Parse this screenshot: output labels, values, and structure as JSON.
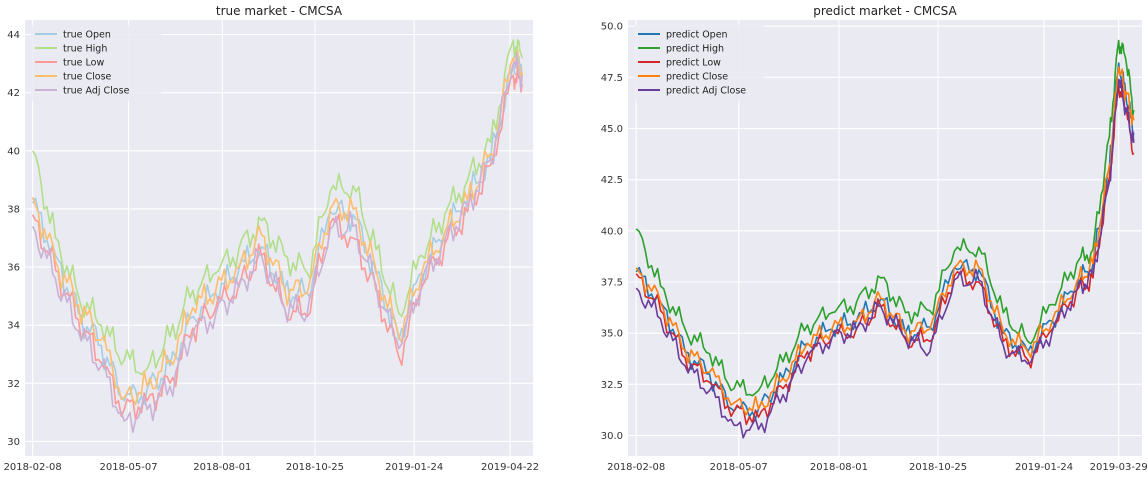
{
  "chart_data": [
    {
      "type": "line",
      "title": "true market - CMCSA",
      "xlabel": "",
      "ylabel": "",
      "x_ticks": [
        "2018-02-08",
        "2018-05-07",
        "2018-08-01",
        "2018-10-25",
        "2019-01-24",
        "2019-04-22"
      ],
      "y_ticks": [
        "30",
        "32",
        "34",
        "36",
        "38",
        "40",
        "42",
        "44"
      ],
      "xlim": [
        "2018-02-01",
        "2019-05-13"
      ],
      "ylim": [
        29.5,
        44.5
      ],
      "grid": true,
      "legend_position": "top-left",
      "x": [
        "2018-02-08",
        "2018-03-01",
        "2018-03-22",
        "2018-04-12",
        "2018-05-03",
        "2018-05-24",
        "2018-06-14",
        "2018-07-05",
        "2018-07-26",
        "2018-08-16",
        "2018-09-06",
        "2018-09-27",
        "2018-10-18",
        "2018-11-08",
        "2018-11-29",
        "2018-12-20",
        "2019-01-10",
        "2019-01-31",
        "2019-02-21",
        "2019-03-14",
        "2019-04-04",
        "2019-04-25",
        "2019-05-03"
      ],
      "series": [
        {
          "name": "true Open",
          "color": "#a6cee3",
          "values": [
            38.2,
            36.4,
            34.4,
            33.3,
            31.4,
            31.8,
            32.6,
            34.3,
            35.1,
            35.9,
            36.7,
            35.2,
            35.1,
            37.9,
            37.8,
            35.8,
            33.5,
            35.8,
            37.2,
            38.4,
            39.7,
            43.0,
            42.6
          ]
        },
        {
          "name": "true High",
          "color": "#b2df8a",
          "values": [
            40.0,
            37.0,
            35.0,
            34.0,
            32.8,
            32.5,
            33.6,
            35.2,
            35.8,
            36.6,
            37.6,
            36.4,
            35.8,
            38.6,
            38.8,
            36.6,
            34.4,
            36.4,
            37.8,
            39.0,
            40.3,
            43.8,
            43.2
          ]
        },
        {
          "name": "true Low",
          "color": "#fb9a99",
          "values": [
            37.8,
            35.9,
            34.2,
            32.7,
            31.1,
            31.4,
            32.0,
            33.9,
            34.6,
            35.4,
            36.4,
            34.6,
            34.3,
            37.5,
            37.0,
            35.2,
            32.9,
            35.3,
            36.8,
            37.9,
            39.5,
            42.6,
            42.3
          ]
        },
        {
          "name": "true Close",
          "color": "#fdbf6f",
          "values": [
            38.4,
            36.2,
            34.7,
            33.5,
            31.5,
            31.9,
            32.8,
            34.6,
            35.2,
            36.0,
            37.1,
            35.3,
            35.1,
            38.0,
            38.0,
            35.9,
            33.6,
            35.8,
            37.2,
            38.3,
            39.9,
            43.2,
            42.7
          ]
        },
        {
          "name": "true Adj Close",
          "color": "#cab2d6",
          "values": [
            37.4,
            35.6,
            33.8,
            32.6,
            30.7,
            31.1,
            31.9,
            33.7,
            34.4,
            35.3,
            36.4,
            34.6,
            34.4,
            37.3,
            37.4,
            35.4,
            33.2,
            35.5,
            36.9,
            38.1,
            39.7,
            43.0,
            42.6
          ]
        }
      ]
    },
    {
      "type": "line",
      "title": "predict market - CMCSA",
      "xlabel": "",
      "ylabel": "",
      "x_ticks": [
        "2018-02-08",
        "2018-05-07",
        "2018-08-01",
        "2018-10-25",
        "2019-01-24",
        "2019-03-29"
      ],
      "y_ticks": [
        "30.0",
        "32.5",
        "35.0",
        "37.5",
        "40.0",
        "42.5",
        "45.0",
        "47.5",
        "50.0"
      ],
      "xlim": [
        "2018-02-01",
        "2019-04-18"
      ],
      "ylim": [
        29.0,
        50.3
      ],
      "grid": true,
      "legend_position": "top-left",
      "x": [
        "2018-02-08",
        "2018-03-01",
        "2018-03-22",
        "2018-04-12",
        "2018-05-03",
        "2018-05-24",
        "2018-06-14",
        "2018-07-05",
        "2018-07-26",
        "2018-08-16",
        "2018-09-06",
        "2018-09-27",
        "2018-10-18",
        "2018-11-08",
        "2018-11-29",
        "2018-12-20",
        "2019-01-10",
        "2019-01-31",
        "2019-02-21",
        "2019-03-07",
        "2019-03-21",
        "2019-03-29",
        "2019-04-04",
        "2019-04-11"
      ],
      "series": [
        {
          "name": "predict Open",
          "color": "#1f77b4",
          "values": [
            38.0,
            36.5,
            34.1,
            33.0,
            31.2,
            31.3,
            32.8,
            34.5,
            35.2,
            35.6,
            36.7,
            35.0,
            35.3,
            38.2,
            38.1,
            35.0,
            34.1,
            35.6,
            37.4,
            38.4,
            43.0,
            48.2,
            46.7,
            44.8
          ]
        },
        {
          "name": "predict High",
          "color": "#2ca02c",
          "values": [
            40.1,
            37.3,
            35.2,
            34.0,
            32.3,
            32.2,
            33.6,
            35.4,
            36.0,
            36.5,
            37.7,
            36.0,
            36.1,
            39.0,
            39.2,
            36.0,
            34.6,
            36.4,
            38.4,
            39.1,
            44.6,
            49.3,
            48.4,
            45.9
          ]
        },
        {
          "name": "predict Low",
          "color": "#d62728",
          "values": [
            37.9,
            36.1,
            33.8,
            32.6,
            31.2,
            30.9,
            32.3,
            34.1,
            34.8,
            35.2,
            36.3,
            34.7,
            34.6,
            37.8,
            37.5,
            34.6,
            33.7,
            35.2,
            37.1,
            37.7,
            42.6,
            47.1,
            46.0,
            43.8
          ]
        },
        {
          "name": "predict Close",
          "color": "#ff7f0e",
          "values": [
            38.2,
            36.5,
            34.2,
            33.1,
            31.6,
            31.3,
            32.8,
            34.5,
            35.2,
            35.6,
            36.7,
            35.1,
            35.2,
            38.2,
            38.2,
            35.1,
            34.1,
            35.6,
            37.5,
            38.4,
            43.2,
            48.0,
            46.8,
            45.4
          ]
        },
        {
          "name": "predict Adj Close",
          "color": "#6a3d9a",
          "values": [
            37.2,
            35.7,
            33.4,
            32.2,
            30.5,
            30.3,
            32.0,
            33.8,
            34.8,
            35.2,
            36.3,
            34.8,
            34.1,
            37.6,
            37.6,
            34.4,
            33.5,
            35.1,
            37.1,
            37.9,
            42.4,
            47.4,
            46.0,
            44.3
          ]
        }
      ]
    }
  ]
}
